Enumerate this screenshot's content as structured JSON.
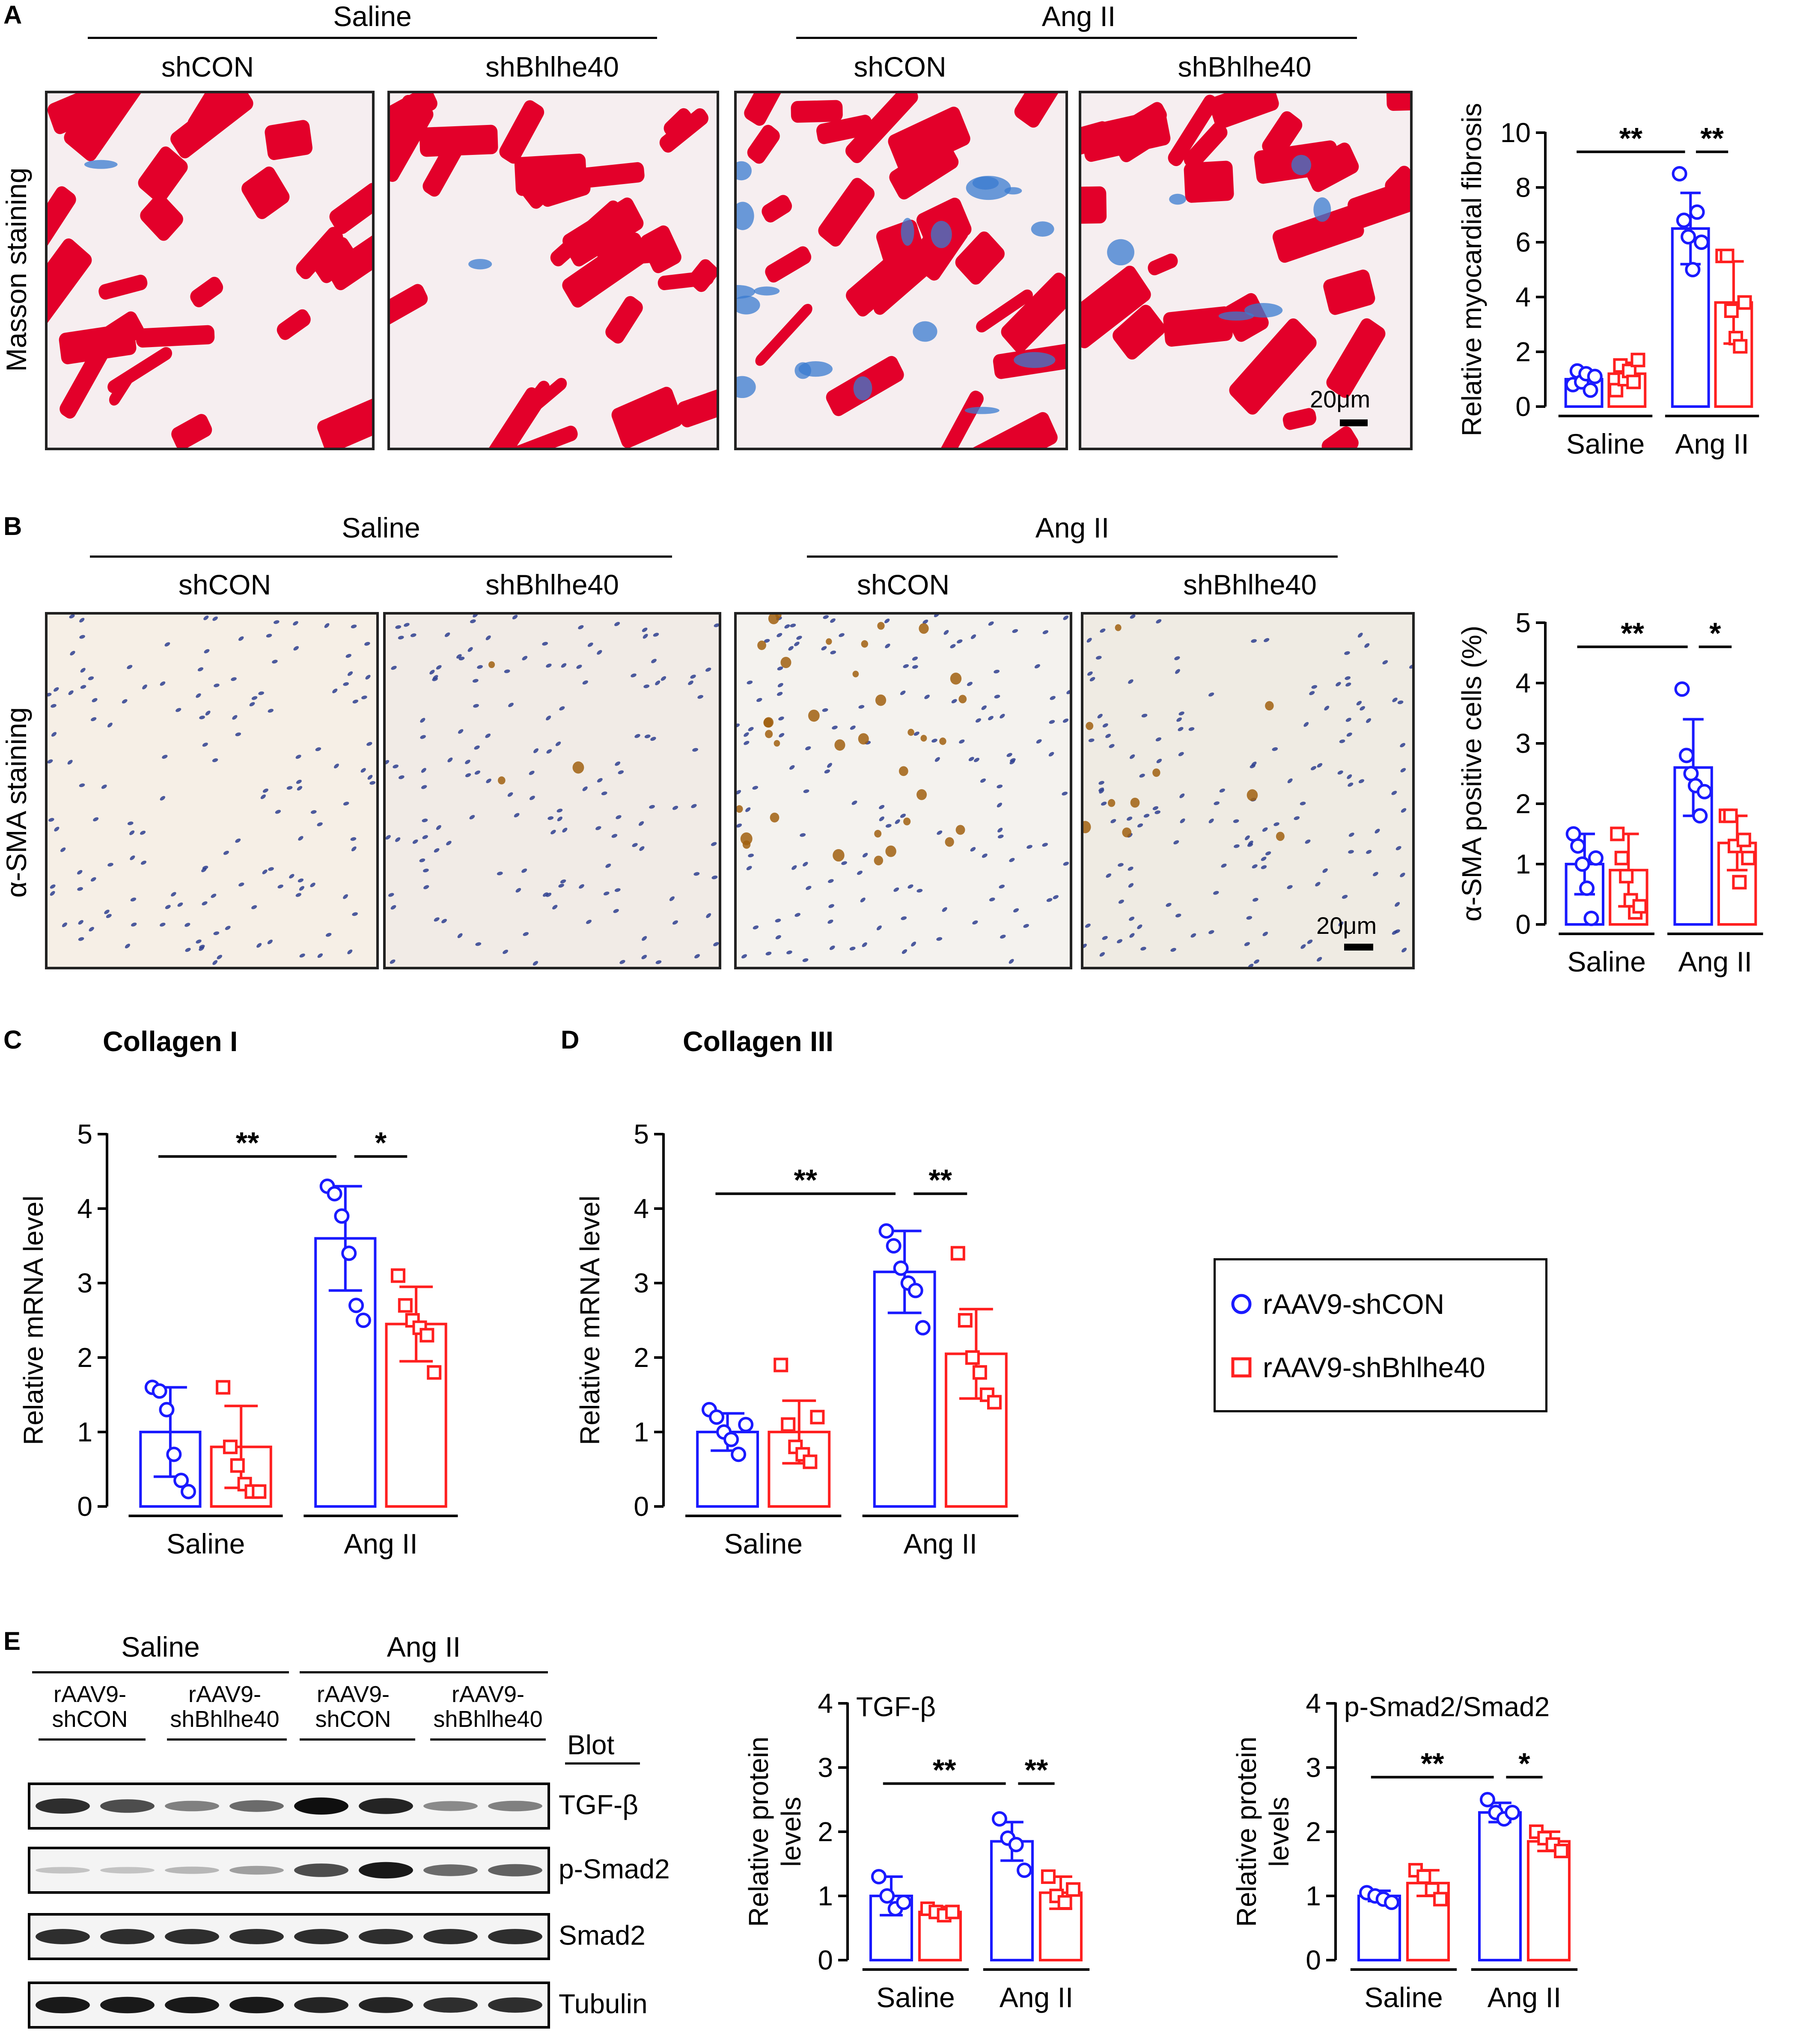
{
  "panels": {
    "A": {
      "letter": "A",
      "group_labels": [
        "Saline",
        "Ang II"
      ],
      "column_labels": [
        "shCON",
        "shBhlhe40",
        "shCON",
        "shBhlhe40"
      ],
      "row_label": "Masson staining",
      "scale_bar": "20μm"
    },
    "B": {
      "letter": "B",
      "group_labels": [
        "Saline",
        "Ang II"
      ],
      "column_labels": [
        "shCON",
        "shBhlhe40",
        "shCON",
        "shBhlhe40"
      ],
      "row_label": "α-SMA staining",
      "scale_bar": "20μm"
    },
    "C": {
      "letter": "C",
      "title": "Collagen I"
    },
    "D": {
      "letter": "D",
      "title": "Collagen III"
    },
    "E": {
      "letter": "E",
      "group_labels": [
        "Saline",
        "Ang II"
      ],
      "lane_labels": [
        "rAAV9-\nshCON",
        "rAAV9-\nshBhlhe40",
        "rAAV9-\nshCON",
        "rAAV9-\nshBhlhe40"
      ],
      "blot_header": "Blot",
      "blot_rows": [
        "TGF-β",
        "p-Smad2",
        "Smad2",
        "Tubulin"
      ],
      "band_intensity": [
        [
          0.85,
          0.7,
          0.45,
          0.55,
          1.0,
          0.9,
          0.4,
          0.45
        ],
        [
          0.12,
          0.12,
          0.18,
          0.3,
          0.7,
          0.95,
          0.55,
          0.6
        ],
        [
          0.85,
          0.85,
          0.85,
          0.85,
          0.85,
          0.85,
          0.85,
          0.85
        ],
        [
          0.95,
          0.95,
          0.95,
          0.95,
          0.9,
          0.9,
          0.85,
          0.85
        ]
      ]
    }
  },
  "legend": {
    "items": [
      "rAAV9-shCON",
      "rAAV9-shBhlhe40"
    ],
    "colors": [
      "#1a1aff",
      "#ff2020"
    ]
  },
  "colors": {
    "shCON": "#1a1aff",
    "shBhlhe40": "#ff2020"
  },
  "chart_data": [
    {
      "id": "A",
      "type": "bar",
      "ylabel": "Relative myocardial fibrosis",
      "ylim": [
        0,
        10
      ],
      "yticks": [
        0,
        2,
        4,
        6,
        8,
        10
      ],
      "groups": [
        "Saline",
        "Ang II"
      ],
      "marker": [
        "circle",
        "square"
      ],
      "bars": [
        {
          "group": 0,
          "series": 0,
          "mean": 1.0,
          "sd": 0.25,
          "points": [
            0.8,
            1.3,
            0.9,
            1.2,
            0.6,
            1.1
          ]
        },
        {
          "group": 0,
          "series": 1,
          "mean": 1.2,
          "sd": 0.4,
          "points": [
            0.6,
            1.5,
            1.0,
            1.3,
            0.9,
            1.7
          ]
        },
        {
          "group": 1,
          "series": 0,
          "mean": 6.5,
          "sd": 1.3,
          "points": [
            8.5,
            6.8,
            6.2,
            5.0,
            7.1,
            6.0
          ]
        },
        {
          "group": 1,
          "series": 1,
          "mean": 3.8,
          "sd": 1.5,
          "points": [
            5.5,
            5.5,
            3.5,
            2.5,
            2.2,
            3.8
          ]
        }
      ],
      "significance": [
        {
          "from": 0,
          "to": 2,
          "label": "**",
          "y": 9.3
        },
        {
          "from": 2,
          "to": 3,
          "label": "**",
          "y": 9.3
        }
      ]
    },
    {
      "id": "B",
      "type": "bar",
      "ylabel": "α-SMA positive cells (%)",
      "ylim": [
        0,
        5
      ],
      "yticks": [
        0,
        1,
        2,
        3,
        4,
        5
      ],
      "groups": [
        "Saline",
        "Ang II"
      ],
      "marker": [
        "circle",
        "square"
      ],
      "bars": [
        {
          "group": 0,
          "series": 0,
          "mean": 1.0,
          "sd": 0.5,
          "points": [
            1.5,
            1.3,
            1.0,
            0.6,
            0.1,
            1.1
          ]
        },
        {
          "group": 0,
          "series": 1,
          "mean": 0.9,
          "sd": 0.6,
          "points": [
            1.5,
            1.1,
            0.8,
            0.4,
            0.2,
            0.3
          ]
        },
        {
          "group": 1,
          "series": 0,
          "mean": 2.6,
          "sd": 0.8,
          "points": [
            3.9,
            2.8,
            2.5,
            2.3,
            1.8,
            2.2
          ]
        },
        {
          "group": 1,
          "series": 1,
          "mean": 1.35,
          "sd": 0.45,
          "points": [
            1.8,
            1.8,
            1.3,
            0.7,
            1.4,
            1.1
          ]
        }
      ],
      "significance": [
        {
          "from": 0,
          "to": 2,
          "label": "**",
          "y": 4.6
        },
        {
          "from": 2,
          "to": 3,
          "label": "*",
          "y": 4.6
        }
      ]
    },
    {
      "id": "C",
      "type": "bar",
      "ylabel": "Relative mRNA level",
      "ylim": [
        0,
        5
      ],
      "yticks": [
        0,
        1,
        2,
        3,
        4,
        5
      ],
      "groups": [
        "Saline",
        "Ang II"
      ],
      "marker": [
        "circle",
        "square"
      ],
      "bars": [
        {
          "group": 0,
          "series": 0,
          "mean": 1.0,
          "sd": 0.6,
          "points": [
            1.6,
            1.55,
            1.3,
            0.7,
            0.35,
            0.2
          ]
        },
        {
          "group": 0,
          "series": 1,
          "mean": 0.8,
          "sd": 0.55,
          "points": [
            1.6,
            0.8,
            0.55,
            0.3,
            0.2,
            0.2
          ]
        },
        {
          "group": 1,
          "series": 0,
          "mean": 3.6,
          "sd": 0.7,
          "points": [
            4.3,
            4.2,
            3.9,
            3.4,
            2.7,
            2.5
          ]
        },
        {
          "group": 1,
          "series": 1,
          "mean": 2.45,
          "sd": 0.5,
          "points": [
            3.1,
            2.7,
            2.5,
            2.4,
            2.3,
            1.8
          ]
        }
      ],
      "significance": [
        {
          "from": 0,
          "to": 2,
          "label": "**",
          "y": 4.7
        },
        {
          "from": 2,
          "to": 3,
          "label": "*",
          "y": 4.7
        }
      ]
    },
    {
      "id": "D",
      "type": "bar",
      "ylabel": "Relative mRNA level",
      "ylim": [
        0,
        5
      ],
      "yticks": [
        0,
        1,
        2,
        3,
        4,
        5
      ],
      "groups": [
        "Saline",
        "Ang II"
      ],
      "marker": [
        "circle",
        "square"
      ],
      "bars": [
        {
          "group": 0,
          "series": 0,
          "mean": 1.0,
          "sd": 0.25,
          "points": [
            1.3,
            1.2,
            1.0,
            0.9,
            0.7,
            1.1
          ]
        },
        {
          "group": 0,
          "series": 1,
          "mean": 1.0,
          "sd": 0.42,
          "points": [
            1.9,
            1.1,
            0.8,
            0.7,
            0.6,
            1.2
          ]
        },
        {
          "group": 1,
          "series": 0,
          "mean": 3.15,
          "sd": 0.55,
          "points": [
            3.7,
            3.5,
            3.2,
            3.0,
            2.9,
            2.4
          ]
        },
        {
          "group": 1,
          "series": 1,
          "mean": 2.05,
          "sd": 0.6,
          "points": [
            3.4,
            2.5,
            2.0,
            1.8,
            1.5,
            1.4
          ]
        }
      ],
      "significance": [
        {
          "from": 0,
          "to": 2,
          "label": "**",
          "y": 4.2
        },
        {
          "from": 2,
          "to": 3,
          "label": "**",
          "y": 4.2
        }
      ]
    },
    {
      "id": "E1",
      "type": "bar",
      "title": "TGF-β",
      "ylabel": "Relative protein\nlevels",
      "ylim": [
        0,
        4
      ],
      "yticks": [
        0,
        1,
        2,
        3,
        4
      ],
      "groups": [
        "Saline",
        "Ang II"
      ],
      "marker": [
        "circle",
        "square"
      ],
      "bars": [
        {
          "group": 0,
          "series": 0,
          "mean": 1.0,
          "sd": 0.3,
          "points": [
            1.3,
            1.0,
            0.8,
            0.9
          ]
        },
        {
          "group": 0,
          "series": 1,
          "mean": 0.75,
          "sd": 0.08,
          "points": [
            0.8,
            0.75,
            0.7,
            0.75
          ]
        },
        {
          "group": 1,
          "series": 0,
          "mean": 1.85,
          "sd": 0.3,
          "points": [
            2.2,
            1.9,
            1.8,
            1.4
          ]
        },
        {
          "group": 1,
          "series": 1,
          "mean": 1.05,
          "sd": 0.25,
          "points": [
            1.3,
            1.0,
            0.9,
            1.1
          ]
        }
      ],
      "significance": [
        {
          "from": 0,
          "to": 2,
          "label": "**",
          "y": 2.75
        },
        {
          "from": 2,
          "to": 3,
          "label": "**",
          "y": 2.75
        }
      ]
    },
    {
      "id": "E2",
      "type": "bar",
      "title": "p-Smad2/Smad2",
      "ylabel": "Relative protein\nlevels",
      "ylim": [
        0,
        4
      ],
      "yticks": [
        0,
        1,
        2,
        3,
        4
      ],
      "groups": [
        "Saline",
        "Ang II"
      ],
      "marker": [
        "circle",
        "square"
      ],
      "bars": [
        {
          "group": 0,
          "series": 0,
          "mean": 1.0,
          "sd": 0.08,
          "points": [
            1.05,
            1.0,
            0.95,
            0.9
          ]
        },
        {
          "group": 0,
          "series": 1,
          "mean": 1.2,
          "sd": 0.2,
          "points": [
            1.4,
            1.3,
            1.1,
            0.95
          ]
        },
        {
          "group": 1,
          "series": 0,
          "mean": 2.3,
          "sd": 0.15,
          "points": [
            2.5,
            2.3,
            2.2,
            2.3
          ]
        },
        {
          "group": 1,
          "series": 1,
          "mean": 1.85,
          "sd": 0.15,
          "points": [
            2.0,
            1.9,
            1.8,
            1.7
          ]
        }
      ],
      "significance": [
        {
          "from": 0,
          "to": 2,
          "label": "**",
          "y": 2.85
        },
        {
          "from": 2,
          "to": 3,
          "label": "*",
          "y": 2.85
        }
      ]
    }
  ]
}
